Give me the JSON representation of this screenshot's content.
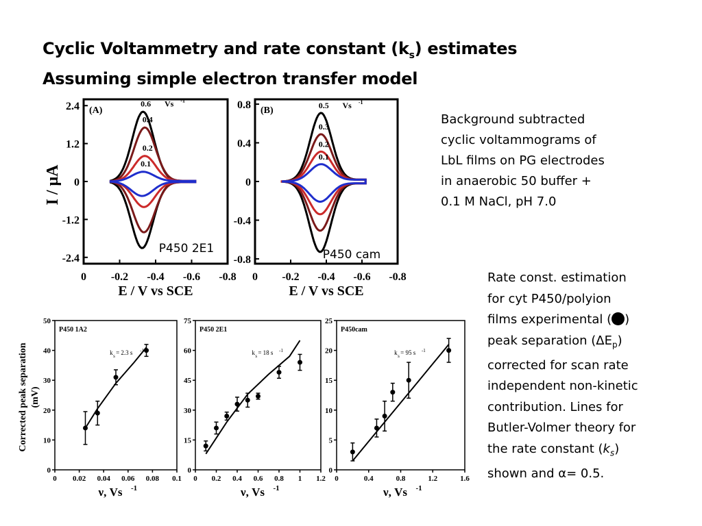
{
  "title": {
    "line1_main": "Cyclic Voltammetry and rate constant (k",
    "line1_sub": "s",
    "line1_end": ")  estimates",
    "line2": "Assuming simple electron transfer model"
  },
  "description_top": {
    "lines": [
      "Background subtracted",
      "cyclic voltammograms of",
      "LbL films on PG electrodes",
      "in anaerobic 50 buffer +",
      "0.1 M NaCl, pH 7.0"
    ]
  },
  "description_bottom": {
    "line1": "Rate const. estimation",
    "line2": "for cyt P450/polyion",
    "line3_a": "films experimental (",
    "line3_b": ")",
    "line4_a": "peak separation (",
    "line4_b": "E",
    "line4_sub": "p",
    "line4_c": ")",
    "line5": "corrected for scan rate",
    "line6": "independent non-kinetic",
    "line7": "contribution. Lines for",
    "line8": "Butler-Volmer theory for",
    "line9_a": "the rate constant (",
    "line9_k": "k",
    "line9_sub": "s",
    "line9_b": ")",
    "line10_a": "shown and ",
    "line10_alpha": "α",
    "line10_b": "= 0.5.",
    "delta": "Δ",
    "marker_color": "#000000"
  },
  "chart_data": [
    {
      "type": "line",
      "panel": "(A)",
      "sample_label": "P450 2E1",
      "xlabel": "E / V vs SCE",
      "ylabel": "I / μA",
      "xlim": [
        0,
        -0.8
      ],
      "ylim": [
        -2.6,
        2.6
      ],
      "xticks": [
        "0",
        "-0.2",
        "-0.4",
        "-0.6",
        "-0.8"
      ],
      "yticks": [
        "2.4",
        "1.2",
        "0",
        "-1.2",
        "-2.4"
      ],
      "scan_rate_unit": "Vs",
      "scan_rate_unit_exp": "-1",
      "series": [
        {
          "name": "0.6",
          "color": "#000000",
          "peak_ox": 2.2,
          "peak_red": -2.1,
          "E0": -0.33
        },
        {
          "name": "0.4",
          "color": "#7a1a1a",
          "peak_ox": 1.7,
          "peak_red": -1.6,
          "E0": -0.34
        },
        {
          "name": "0.2",
          "color": "#cc2a2a",
          "peak_ox": 0.8,
          "peak_red": -0.8,
          "E0": -0.34
        },
        {
          "name": "0.1",
          "color": "#1f2ecc",
          "peak_ox": 0.3,
          "peak_red": -0.45,
          "E0": -0.33
        }
      ]
    },
    {
      "type": "line",
      "panel": "(B)",
      "sample_label": "P450 cam",
      "xlabel": "E / V vs SCE",
      "ylabel": "",
      "xlim": [
        0,
        -0.8
      ],
      "ylim": [
        -0.85,
        0.85
      ],
      "xticks": [
        "0",
        "-0.2",
        "-0.4",
        "-0.6",
        "-0.8"
      ],
      "yticks": [
        "0.8",
        "0.4",
        "0",
        "-0.4",
        "-0.8"
      ],
      "scan_rate_unit": "Vs",
      "scan_rate_unit_exp": "-1",
      "series": [
        {
          "name": "0.5",
          "color": "#000000",
          "peak_ox": 0.7,
          "peak_red": -0.72,
          "E0": -0.37
        },
        {
          "name": "0.3",
          "color": "#7a1a1a",
          "peak_ox": 0.48,
          "peak_red": -0.5,
          "E0": -0.37
        },
        {
          "name": "0.2",
          "color": "#cc2a2a",
          "peak_ox": 0.3,
          "peak_red": -0.33,
          "E0": -0.37
        },
        {
          "name": "0.1",
          "color": "#1f2ecc",
          "peak_ox": 0.17,
          "peak_red": -0.2,
          "E0": -0.37
        }
      ]
    },
    {
      "type": "scatter",
      "panel": "P450 1A2",
      "annotation_k": "k",
      "annotation_sub": "s",
      "annotation_val": " = 2.3 s",
      "annotation_exp": "-1",
      "xlabel": "ν, Vs",
      "xlabel_exp": "-1",
      "ylabel": "Corrected peak separation",
      "ylabel_unit": "(mV)",
      "xlim": [
        0,
        0.1
      ],
      "ylim": [
        0,
        50
      ],
      "xticks": [
        "0",
        "0.02",
        "0.04",
        "0.06",
        "0.08",
        "0.1"
      ],
      "yticks": [
        "50",
        "40",
        "30",
        "20",
        "10",
        "0"
      ],
      "points": [
        {
          "x": 0.025,
          "y": 14,
          "err": 5.5
        },
        {
          "x": 0.035,
          "y": 19,
          "err": 4
        },
        {
          "x": 0.05,
          "y": 31,
          "err": 2.5
        },
        {
          "x": 0.075,
          "y": 40,
          "err": 2
        }
      ],
      "fit": [
        [
          0.025,
          14
        ],
        [
          0.035,
          20.5
        ],
        [
          0.05,
          29
        ],
        [
          0.065,
          36
        ],
        [
          0.075,
          41
        ]
      ]
    },
    {
      "type": "scatter",
      "panel": "P450 2E1",
      "annotation_k": "k",
      "annotation_sub": "s",
      "annotation_val": " = 18 s",
      "annotation_exp": "-1",
      "xlabel": "ν, Vs",
      "xlabel_exp": "-1",
      "xlim": [
        0,
        1.2
      ],
      "ylim": [
        0,
        75
      ],
      "xticks": [
        "0",
        "0.2",
        "0.4",
        "0.6",
        "0.8",
        "1",
        "1.2"
      ],
      "yticks": [
        "75",
        "60",
        "45",
        "30",
        "15",
        "0"
      ],
      "points": [
        {
          "x": 0.1,
          "y": 12,
          "err": 2.5
        },
        {
          "x": 0.2,
          "y": 21,
          "err": 3
        },
        {
          "x": 0.3,
          "y": 27,
          "err": 2
        },
        {
          "x": 0.4,
          "y": 33,
          "err": 3.5
        },
        {
          "x": 0.5,
          "y": 35,
          "err": 3.5
        },
        {
          "x": 0.6,
          "y": 37,
          "err": 1.5
        },
        {
          "x": 0.8,
          "y": 49,
          "err": 3
        },
        {
          "x": 1.0,
          "y": 54,
          "err": 4
        }
      ],
      "fit": [
        [
          0.1,
          8
        ],
        [
          0.3,
          24
        ],
        [
          0.5,
          38
        ],
        [
          0.7,
          48
        ],
        [
          0.9,
          57
        ],
        [
          1.0,
          65
        ]
      ]
    },
    {
      "type": "scatter",
      "panel": "P450cam",
      "annotation_k": "k",
      "annotation_sub": "s",
      "annotation_val": " = 95 s",
      "annotation_exp": "-1",
      "xlabel": "ν, Vs",
      "xlabel_exp": "-1",
      "xlim": [
        0,
        1.6
      ],
      "ylim": [
        0,
        25
      ],
      "xticks": [
        "0",
        "0.4",
        "0.8",
        "1.2",
        "1.6"
      ],
      "yticks": [
        "25",
        "20",
        "15",
        "10",
        "5",
        "0"
      ],
      "points": [
        {
          "x": 0.2,
          "y": 3,
          "err": 1.5
        },
        {
          "x": 0.5,
          "y": 7,
          "err": 1.5
        },
        {
          "x": 0.6,
          "y": 9,
          "err": 2.5
        },
        {
          "x": 0.7,
          "y": 13,
          "err": 1.5
        },
        {
          "x": 0.9,
          "y": 15,
          "err": 3
        },
        {
          "x": 1.4,
          "y": 20,
          "err": 2
        }
      ],
      "fit": [
        [
          0.2,
          1.5
        ],
        [
          0.6,
          8
        ],
        [
          1.0,
          14.5
        ],
        [
          1.4,
          21
        ]
      ]
    }
  ]
}
